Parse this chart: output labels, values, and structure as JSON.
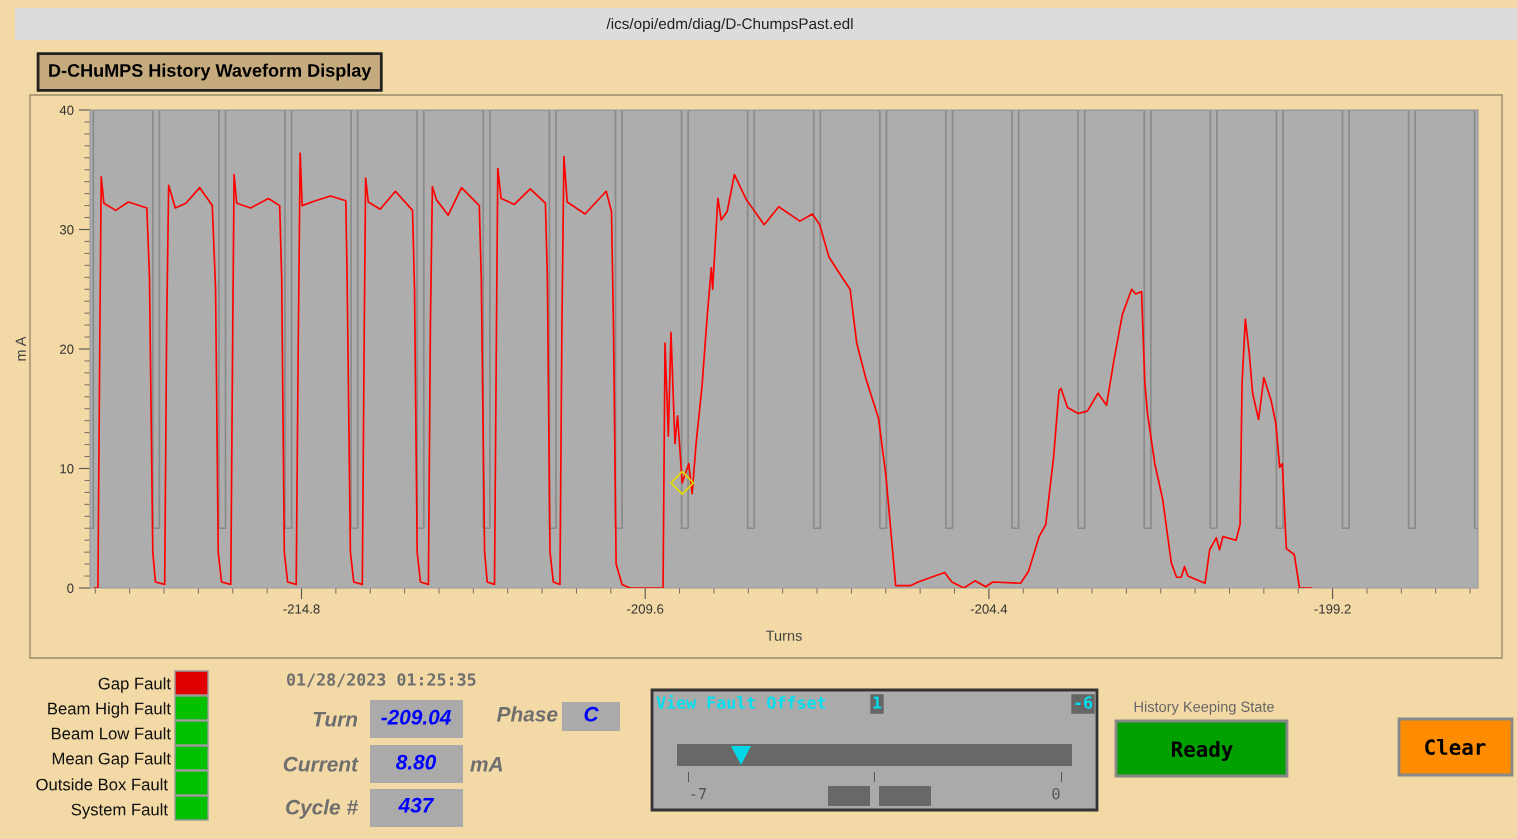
{
  "chart_data": {
    "type": "line",
    "title": "D-CHuMPS History Waveform Display",
    "xlabel": "Turns",
    "ylabel": "m A",
    "xlim": [
      -218.0,
      -197.0
    ],
    "ylim": [
      0,
      40
    ],
    "xticks": [
      {
        "value": -217.92,
        "label": null
      },
      {
        "value": -217.4,
        "label": null
      },
      {
        "value": -216.88,
        "label": null
      },
      {
        "value": -216.36,
        "label": null
      },
      {
        "value": -215.84,
        "label": null
      },
      {
        "value": -215.32,
        "label": null
      },
      -214.8,
      {
        "value": -214.28,
        "label": null
      },
      {
        "value": -213.76,
        "label": null
      },
      {
        "value": -213.24,
        "label": null
      },
      {
        "value": -212.72,
        "label": null
      },
      {
        "value": -212.2,
        "label": null
      },
      {
        "value": -211.68,
        "label": null
      },
      {
        "value": -211.16,
        "label": null
      },
      {
        "value": -210.64,
        "label": null
      },
      {
        "value": -210.12,
        "label": null
      },
      -209.6,
      {
        "value": -209.08,
        "label": null
      },
      {
        "value": -208.56,
        "label": null
      },
      {
        "value": -208.04,
        "label": null
      },
      {
        "value": -207.52,
        "label": null
      },
      {
        "value": -207.0,
        "label": null
      },
      {
        "value": -206.48,
        "label": null
      },
      {
        "value": -205.96,
        "label": null
      },
      {
        "value": -205.44,
        "label": null
      },
      {
        "value": -204.92,
        "label": null
      },
      -204.4,
      {
        "value": -203.88,
        "label": null
      },
      {
        "value": -203.36,
        "label": null
      },
      {
        "value": -202.84,
        "label": null
      },
      {
        "value": -202.32,
        "label": null
      },
      {
        "value": -201.8,
        "label": null
      },
      {
        "value": -201.28,
        "label": null
      },
      {
        "value": -200.76,
        "label": null
      },
      {
        "value": -200.24,
        "label": null
      },
      {
        "value": -199.72,
        "label": null
      },
      -199.2,
      {
        "value": -198.68,
        "label": null
      },
      {
        "value": -198.16,
        "label": null
      },
      {
        "value": -197.64,
        "label": null
      },
      {
        "value": -197.12,
        "label": null
      }
    ],
    "yticks": [
      0,
      {
        "value": 1,
        "label": null
      },
      {
        "value": 2,
        "label": null
      },
      {
        "value": 3,
        "label": null
      },
      {
        "value": 4,
        "label": null
      },
      {
        "value": 5,
        "label": null
      },
      {
        "value": 6,
        "label": null
      },
      {
        "value": 7,
        "label": null
      },
      {
        "value": 8,
        "label": null
      },
      {
        "value": 9,
        "label": null
      },
      10,
      {
        "value": 11,
        "label": null
      },
      {
        "value": 12,
        "label": null
      },
      {
        "value": 13,
        "label": null
      },
      {
        "value": 14,
        "label": null
      },
      {
        "value": 15,
        "label": null
      },
      {
        "value": 16,
        "label": null
      },
      {
        "value": 17,
        "label": null
      },
      {
        "value": 18,
        "label": null
      },
      {
        "value": 19,
        "label": null
      },
      20,
      {
        "value": 21,
        "label": null
      },
      {
        "value": 22,
        "label": null
      },
      {
        "value": 23,
        "label": null
      },
      {
        "value": 24,
        "label": null
      },
      {
        "value": 25,
        "label": null
      },
      {
        "value": 26,
        "label": null
      },
      {
        "value": 27,
        "label": null
      },
      {
        "value": 28,
        "label": null
      },
      {
        "value": 29,
        "label": null
      },
      30,
      {
        "value": 31,
        "label": null
      },
      {
        "value": 32,
        "label": null
      },
      {
        "value": 33,
        "label": null
      },
      {
        "value": 34,
        "label": null
      },
      {
        "value": 35,
        "label": null
      },
      {
        "value": 36,
        "label": null
      },
      {
        "value": 37,
        "label": null
      },
      {
        "value": 38,
        "label": null
      },
      {
        "value": 39,
        "label": null
      },
      40
    ],
    "series": [
      {
        "color": "#8a8a8a",
        "x": [
          -218.0,
          -217.95,
          -217.95,
          -217.05,
          -217.05,
          -216.95,
          -216.95,
          -216.05,
          -216.05,
          -215.95,
          -215.95,
          -215.05,
          -215.05,
          -214.95,
          -214.95,
          -214.05,
          -214.05,
          -213.95,
          -213.95,
          -213.05,
          -213.05,
          -212.95,
          -212.95,
          -212.05,
          -212.05,
          -211.95,
          -211.95,
          -211.05,
          -211.05,
          -210.95,
          -210.95,
          -210.05,
          -210.05,
          -209.95,
          -209.95,
          -209.05,
          -209.05,
          -208.95,
          -208.95,
          -208.05,
          -208.05,
          -207.95,
          -207.95,
          -207.05,
          -207.05,
          -206.95,
          -206.95,
          -206.05,
          -206.05,
          -205.95,
          -205.95,
          -205.05,
          -205.05,
          -204.95,
          -204.95,
          -204.05,
          -204.05,
          -203.95,
          -203.95,
          -203.05,
          -203.05,
          -202.95,
          -202.95,
          -202.05,
          -202.05,
          -201.95,
          -201.95,
          -201.05,
          -201.05,
          -200.95,
          -200.95,
          -200.05,
          -200.05,
          -199.95,
          -199.95,
          -199.05,
          -199.05,
          -198.95,
          -198.95,
          -198.05,
          -198.05,
          -197.95,
          -197.95,
          -197.05,
          -197.05,
          -197.0
        ],
        "values": [
          5,
          5,
          40,
          40,
          5,
          5,
          40,
          40,
          5,
          5,
          40,
          40,
          5,
          5,
          40,
          40,
          5,
          5,
          40,
          40,
          5,
          5,
          40,
          40,
          5,
          5,
          40,
          40,
          5,
          5,
          40,
          40,
          5,
          5,
          40,
          40,
          5,
          5,
          40,
          40,
          5,
          5,
          40,
          40,
          5,
          5,
          40,
          40,
          5,
          5,
          40,
          40,
          5,
          5,
          40,
          40,
          5,
          5,
          40,
          40,
          5,
          5,
          40,
          40,
          5,
          5,
          40,
          40,
          5,
          5,
          40,
          40,
          5,
          5,
          40,
          40,
          5,
          5,
          40,
          40,
          5,
          5,
          40,
          40,
          5,
          5
        ]
      },
      {
        "color": "#ff0000",
        "x": [
          -217.93,
          -217.88,
          -217.85,
          -217.83,
          -217.79,
          -217.61,
          -217.42,
          -217.14,
          -217.1,
          -217.05,
          -217.01,
          -216.87,
          -216.84,
          -216.81,
          -216.71,
          -216.55,
          -216.34,
          -216.15,
          -216.1,
          -216.06,
          -216.01,
          -215.87,
          -215.84,
          -215.82,
          -215.78,
          -215.57,
          -215.3,
          -215.13,
          -215.1,
          -215.06,
          -215.01,
          -214.88,
          -214.85,
          -214.82,
          -214.79,
          -214.59,
          -214.36,
          -214.13,
          -214.11,
          -214.06,
          -214.01,
          -213.88,
          -213.85,
          -213.83,
          -213.79,
          -213.61,
          -213.38,
          -213.12,
          -213.09,
          -213.05,
          -213.0,
          -212.88,
          -212.85,
          -212.82,
          -212.76,
          -212.58,
          -212.38,
          -212.11,
          -212.08,
          -212.03,
          -211.99,
          -211.88,
          -211.85,
          -211.83,
          -211.78,
          -211.58,
          -211.34,
          -211.11,
          -211.08,
          -211.04,
          -210.99,
          -210.89,
          -210.86,
          -210.83,
          -210.78,
          -210.51,
          -210.19,
          -210.11,
          -210.08,
          -210.04,
          -209.95,
          -209.83,
          -209.33,
          -209.3,
          -209.25,
          -209.21,
          -209.15,
          -209.11,
          -209.04,
          -208.94,
          -208.89,
          -208.83,
          -208.74,
          -208.66,
          -208.6,
          -208.58,
          -208.5,
          -208.45,
          -208.36,
          -208.25,
          -208.07,
          -207.8,
          -207.58,
          -207.26,
          -207.07,
          -206.96,
          -206.82,
          -206.61,
          -206.5,
          -206.4,
          -206.26,
          -206.07,
          -205.96,
          -205.81,
          -205.58,
          -205.47,
          -205.07,
          -204.96,
          -204.78,
          -204.61,
          -204.45,
          -204.34,
          -203.92,
          -203.8,
          -203.64,
          -203.54,
          -203.42,
          -203.34,
          -203.31,
          -203.21,
          -203.05,
          -202.91,
          -202.75,
          -202.62,
          -202.51,
          -202.38,
          -202.24,
          -202.18,
          -202.09,
          -202.04,
          -202.0,
          -201.89,
          -201.77,
          -201.64,
          -201.56,
          -201.49,
          -201.44,
          -201.39,
          -201.13,
          -201.06,
          -200.96,
          -200.91,
          -200.86,
          -200.66,
          -200.6,
          -200.57,
          -200.52,
          -200.46,
          -200.41,
          -200.32,
          -200.24,
          -200.13,
          -200.06,
          -200.0,
          -199.96,
          -199.9,
          -199.78,
          -199.7,
          -199.52
        ],
        "values": [
          0,
          0,
          22,
          34.4,
          32.2,
          31.6,
          32.3,
          31.8,
          26,
          3,
          0.5,
          0.3,
          22,
          33.7,
          31.8,
          32.2,
          33.5,
          32.0,
          25,
          3,
          0.5,
          0.3,
          22,
          34.6,
          32.2,
          31.8,
          32.6,
          32,
          26,
          3,
          0.5,
          0.3,
          20,
          36.4,
          32.0,
          32.4,
          32.8,
          32.4,
          26,
          3,
          0.5,
          0.3,
          22,
          34.3,
          32.3,
          31.7,
          33.2,
          31.6,
          25,
          3,
          0.5,
          0.3,
          22,
          33.6,
          32.5,
          31.2,
          33.5,
          32,
          26,
          3,
          0.5,
          0.3,
          22,
          35.1,
          32.6,
          32.1,
          33.4,
          32.2,
          26,
          3,
          0.5,
          0.3,
          22,
          36.1,
          32.3,
          31.3,
          33.2,
          31.5,
          22,
          2,
          0.3,
          0,
          0,
          20.5,
          12.7,
          21.4,
          12.1,
          14.4,
          8.8,
          10.4,
          7.9,
          12.1,
          16.9,
          22.9,
          26.8,
          25.0,
          32.6,
          30.8,
          31.5,
          34.6,
          32.5,
          30.4,
          31.9,
          30.7,
          31.3,
          30.4,
          27.7,
          25.9,
          25.0,
          20.5,
          17.5,
          14.2,
          9.5,
          0.2,
          0.2,
          0.5,
          1.3,
          0.5,
          0,
          0.6,
          0.1,
          0.5,
          0.4,
          1.4,
          4.3,
          5.3,
          11.0,
          16.5,
          16.7,
          15.1,
          14.6,
          14.8,
          16.3,
          15.3,
          19.0,
          22.9,
          25.0,
          24.6,
          24.8,
          17.1,
          14.6,
          10.4,
          7.4,
          2.1,
          0.9,
          0.9,
          1.8,
          1.0,
          0.4,
          3.2,
          4.2,
          3.2,
          4.3,
          4.0,
          5.3,
          17.1,
          22.5,
          19.6,
          16.3,
          14.1,
          17.6,
          15.7,
          13.8,
          10.1,
          10.4,
          3.3,
          2.8,
          0,
          0
        ]
      },
      {
        "type": "scatter",
        "marker": "diamond",
        "color": "#e6d800",
        "x": [
          -209.04
        ],
        "values": [
          8.8
        ]
      }
    ],
    "annotations": [
      "/ics/opi/edm/diag/D-ChumpsPast.edl",
      "Gap Fault",
      "Beam High Fault",
      "Beam Low Fault",
      "Mean Gap Fault",
      "Outside Box Fault",
      "System Fault",
      "01/28/2023 01:25:35",
      "Turn",
      "-209.04",
      "Phase",
      "C",
      "Current",
      "8.80",
      "mA",
      "Cycle #",
      "437",
      "View Fault Offset",
      "1",
      "-6",
      "-7",
      "0",
      "History Keeping State",
      "Ready",
      "Clear"
    ]
  }
}
